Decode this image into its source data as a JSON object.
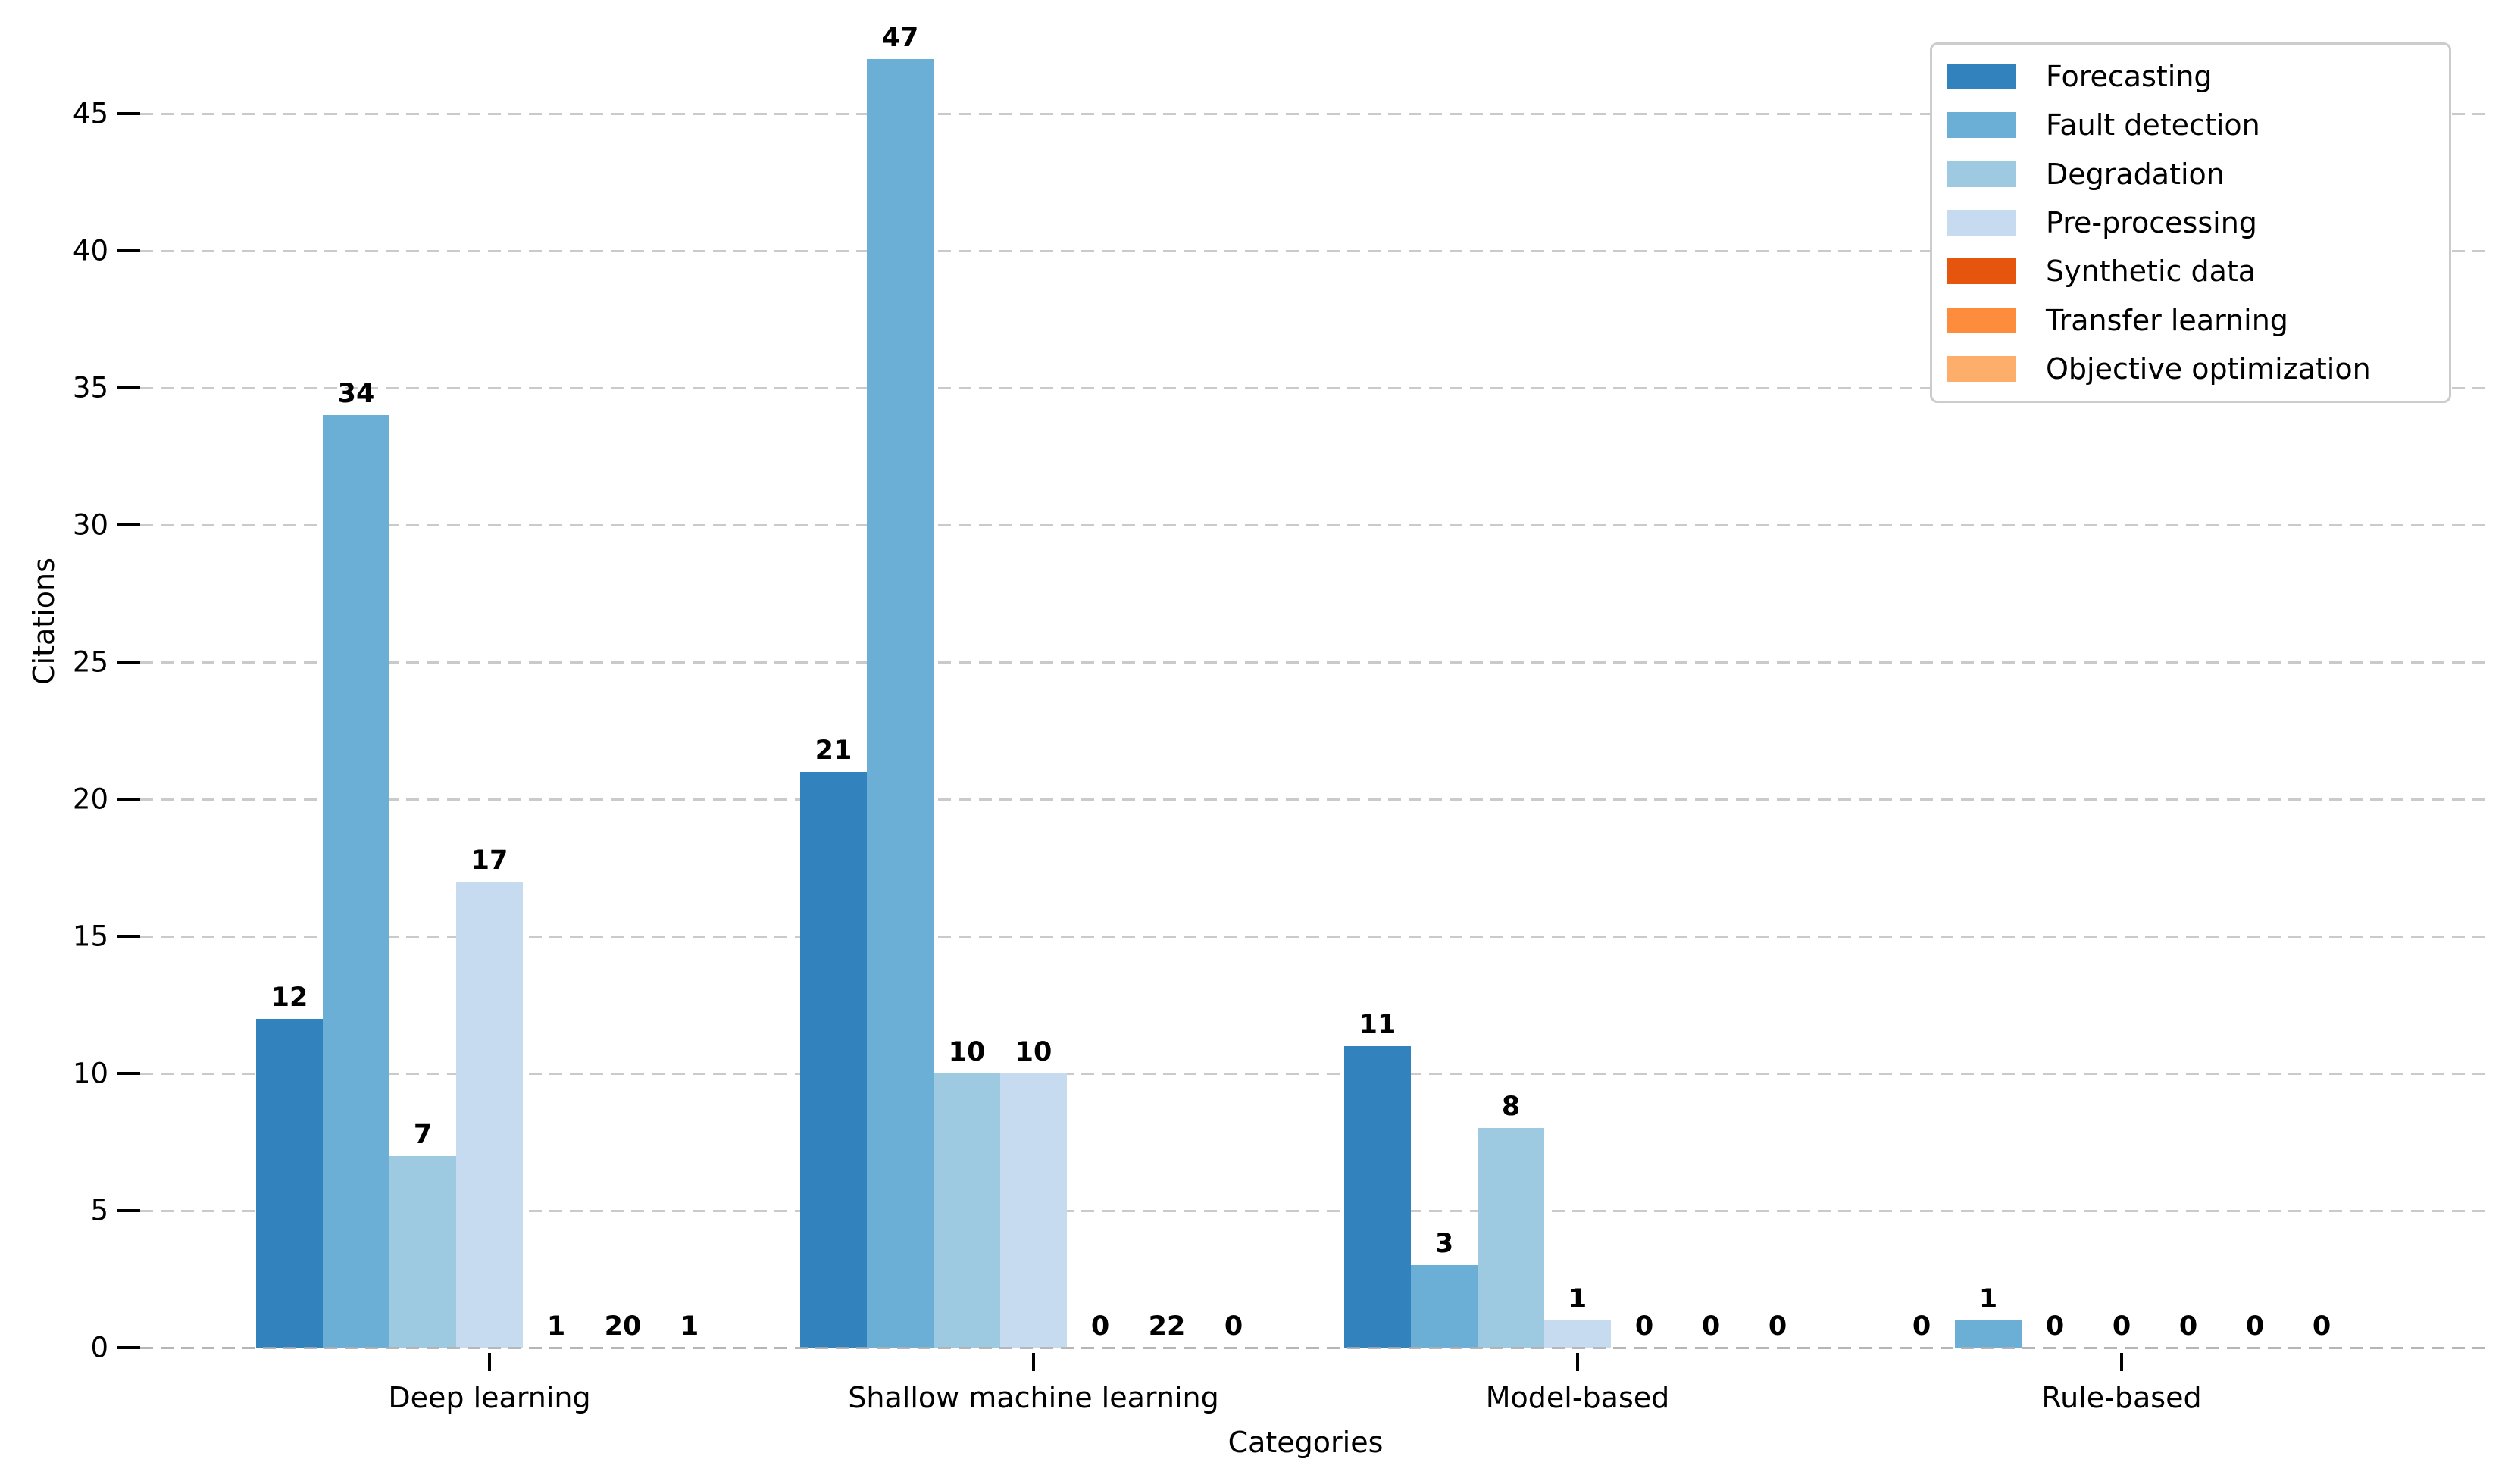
{
  "chart_data": {
    "type": "bar",
    "title": "",
    "xlabel": "Categories",
    "ylabel": "Citations",
    "categories": [
      "Deep learning",
      "Shallow machine learning",
      "Model-based",
      "Rule-based"
    ],
    "series": [
      {
        "name": "Forecasting",
        "color": "#3182bd",
        "values": [
          12,
          21,
          11,
          0
        ]
      },
      {
        "name": "Fault detection",
        "color": "#6baed6",
        "values": [
          34,
          47,
          3,
          1
        ]
      },
      {
        "name": "Degradation",
        "color": "#9ecae1",
        "values": [
          7,
          10,
          8,
          0
        ]
      },
      {
        "name": "Pre-processing",
        "color": "#c6dbef",
        "values": [
          17,
          10,
          1,
          0
        ]
      },
      {
        "name": "Synthetic data",
        "color": "#e6550d",
        "values": [
          1,
          0,
          0,
          0
        ]
      },
      {
        "name": "Transfer learning",
        "color": "#fd8d3c",
        "values": [
          20,
          22,
          0,
          0
        ]
      },
      {
        "name": "Objective optimization",
        "color": "#fdae6b",
        "values": [
          1,
          0,
          0,
          0
        ]
      }
    ],
    "yticks": [
      0,
      5,
      10,
      15,
      20,
      25,
      30,
      35,
      40,
      45
    ],
    "ylim": [
      0,
      48.5
    ],
    "grid": "dashed-horizontal",
    "legend_position": "upper-right",
    "bar_value_labels": true
  }
}
